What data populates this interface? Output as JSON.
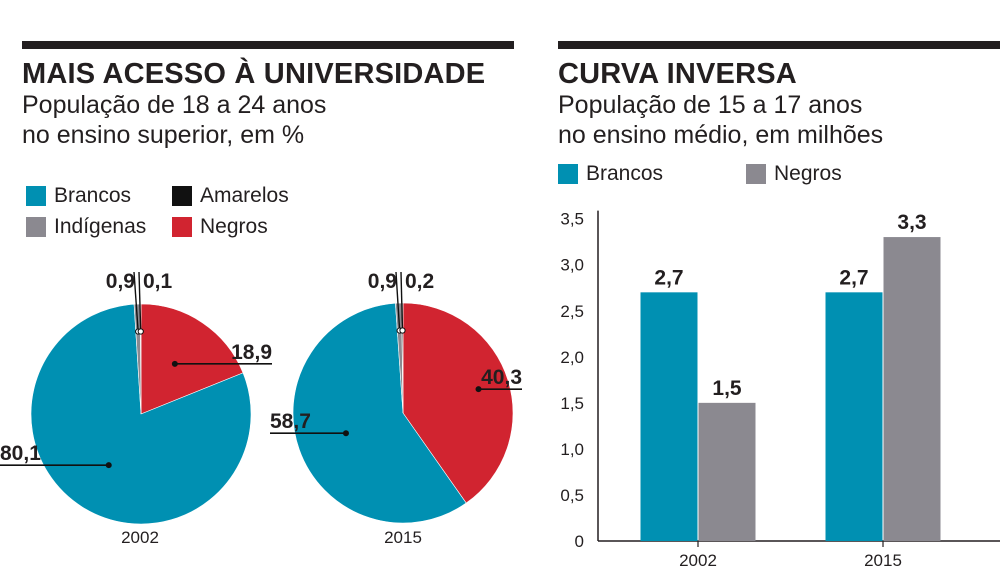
{
  "colors": {
    "brancos": "#0090b2",
    "amarelos": "#111111",
    "indigenas": "#8b8990",
    "negros": "#d12430",
    "ink": "#231f20"
  },
  "left": {
    "title": "MAIS ACESSO À UNIVERSIDADE",
    "subtitle_line1": "População de 18 a 24 anos",
    "subtitle_line2": "no ensino superior, em %",
    "legend": {
      "brancos": "Brancos",
      "amarelos": "Amarelos",
      "indigenas": "Indígenas",
      "negros": "Negros"
    }
  },
  "right": {
    "title": "CURVA INVERSA",
    "subtitle_line1": "População de 15 a 17 anos",
    "subtitle_line2": "no ensino médio, em milhões",
    "legend": {
      "brancos": "Brancos",
      "negros": "Negros"
    }
  },
  "chart_data": [
    {
      "type": "pie",
      "title": "2002",
      "slices": [
        {
          "name": "Brancos",
          "value": 80.1,
          "label": "80,1"
        },
        {
          "name": "Indígenas",
          "value": 0.9,
          "label": "0,9"
        },
        {
          "name": "Amarelos",
          "value": 0.1,
          "label": "0,1"
        },
        {
          "name": "Negros",
          "value": 18.9,
          "label": "18,9"
        }
      ]
    },
    {
      "type": "pie",
      "title": "2015",
      "slices": [
        {
          "name": "Brancos",
          "value": 58.7,
          "label": "58,7"
        },
        {
          "name": "Indígenas",
          "value": 0.9,
          "label": "0,9"
        },
        {
          "name": "Amarelos",
          "value": 0.2,
          "label": "0,2"
        },
        {
          "name": "Negros",
          "value": 40.3,
          "label": "40,3"
        }
      ]
    },
    {
      "type": "bar",
      "title": "CURVA INVERSA",
      "categories": [
        "2002",
        "2015"
      ],
      "series": [
        {
          "name": "Brancos",
          "values": [
            2.7,
            2.7
          ],
          "labels": [
            "2,7",
            "2,7"
          ]
        },
        {
          "name": "Negros",
          "values": [
            1.5,
            3.3
          ],
          "labels": [
            "1,5",
            "3,3"
          ]
        }
      ],
      "ylim": [
        0,
        3.5
      ],
      "yticks": [
        "0",
        "0,5",
        "1,0",
        "1,5",
        "2,0",
        "2,5",
        "3,0",
        "3,5"
      ],
      "xlabel": "",
      "ylabel": ""
    }
  ]
}
